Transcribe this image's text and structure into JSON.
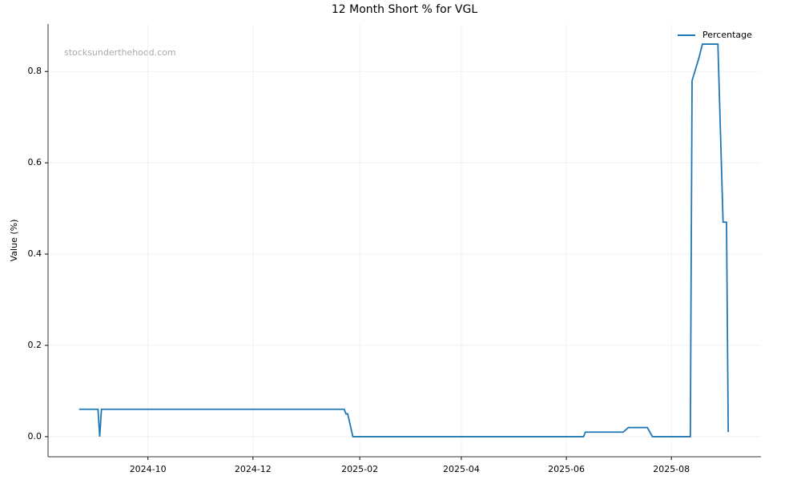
{
  "chart_data": {
    "type": "line",
    "title": "12 Month Short % for VGL",
    "ylabel": "Value (%)",
    "watermark": "stocksunderthehood.com",
    "x": [
      "2024-08-22",
      "2024-09-02",
      "2024-09-03",
      "2024-09-04",
      "2025-01-23",
      "2025-01-24",
      "2025-01-25",
      "2025-01-28",
      "2025-06-11",
      "2025-06-12",
      "2025-07-04",
      "2025-07-07",
      "2025-07-18",
      "2025-07-21",
      "2025-08-12",
      "2025-08-13",
      "2025-08-17",
      "2025-08-19",
      "2025-08-28",
      "2025-08-31",
      "2025-09-02",
      "2025-09-03"
    ],
    "series": [
      {
        "name": "Percentage",
        "color": "#1f77b4",
        "values": [
          0.06,
          0.06,
          0,
          0.06,
          0.06,
          0.05,
          0.05,
          0,
          0,
          0.01,
          0.01,
          0.02,
          0.02,
          0,
          0,
          0.78,
          0.83,
          0.86,
          0.86,
          0.47,
          0.47,
          0.01
        ]
      }
    ],
    "xlim": [
      "2024-08-04",
      "2025-09-22"
    ],
    "xticks": [
      {
        "value": "2024-10-01",
        "label": "2024-10"
      },
      {
        "value": "2024-12-01",
        "label": "2024-12"
      },
      {
        "value": "2025-02-01",
        "label": "2025-02"
      },
      {
        "value": "2025-04-01",
        "label": "2025-04"
      },
      {
        "value": "2025-06-01",
        "label": "2025-06"
      },
      {
        "value": "2025-08-01",
        "label": "2025-08"
      }
    ],
    "ylim": [
      -0.044,
      0.904
    ],
    "yticks": [
      {
        "value": 0,
        "label": "0.0"
      },
      0.2,
      0.4,
      0.6,
      0.8
    ],
    "grid": true,
    "legend": "upper right"
  }
}
